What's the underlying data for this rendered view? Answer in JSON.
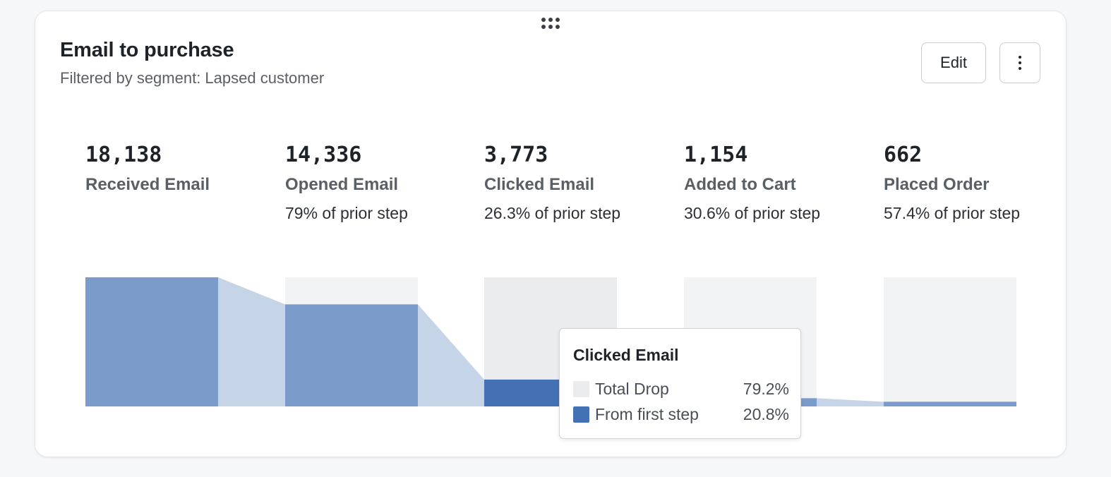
{
  "card": {
    "title": "Email to purchase",
    "subtitle": "Filtered by segment: Lapsed customer",
    "edit_label": "Edit"
  },
  "icons": {
    "drag": "drag-handle-icon",
    "more": "more-vertical-icon"
  },
  "colors": {
    "bar": "#7b9bcb",
    "bar_highlight": "#4470b4",
    "connector": "#c6d4e7",
    "drop_background": "#f2f3f5",
    "drop_background_hover": "#ebecee"
  },
  "chart_data": {
    "type": "funnel",
    "steps": [
      {
        "name": "Received Email",
        "count_label": "18,138",
        "count": 18138,
        "rate_label": ""
      },
      {
        "name": "Opened Email",
        "count_label": "14,336",
        "count": 14336,
        "rate_label": "79% of prior step"
      },
      {
        "name": "Clicked Email",
        "count_label": "3,773",
        "count": 3773,
        "rate_label": "26.3% of prior step"
      },
      {
        "name": "Added to Cart",
        "count_label": "1,154",
        "count": 1154,
        "rate_label": "30.6% of prior step"
      },
      {
        "name": "Placed Order",
        "count_label": "662",
        "count": 662,
        "rate_label": "57.4% of prior step"
      }
    ],
    "highlighted_step": 2
  },
  "tooltip": {
    "title": "Clicked Email",
    "rows": [
      {
        "label": "Total Drop",
        "value": "79.2%",
        "color": "#ebecee"
      },
      {
        "label": "From first step",
        "value": "20.8%",
        "color": "#4470b4"
      }
    ]
  }
}
